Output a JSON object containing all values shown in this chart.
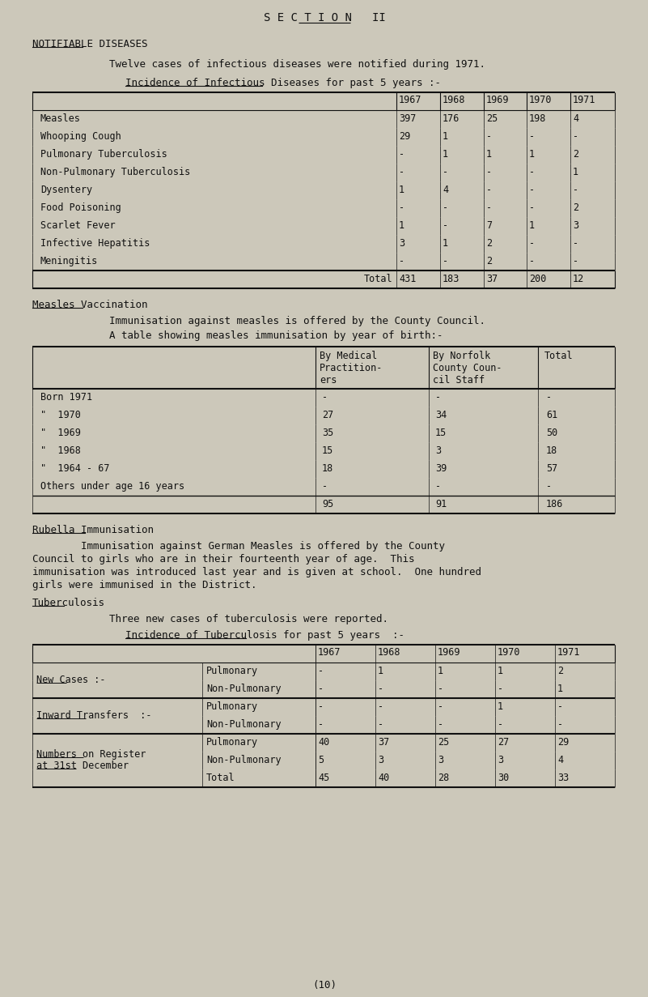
{
  "bg_color": "#ccc8ba",
  "text_color": "#111111",
  "page_title": "S E C T I O N   II",
  "section_heading": "NOTIFIABLE DISEASES",
  "intro_text": "Twelve cases of infectious diseases were notified during 1971.",
  "table1_title": "Incidence of Infectious Diseases for past 5 years :-",
  "table1_years": [
    "1967",
    "1968",
    "1969",
    "1970",
    "1971"
  ],
  "table1_rows": [
    [
      "Measles",
      "397",
      "176",
      "25",
      "198",
      "4"
    ],
    [
      "Whooping Cough",
      "29",
      "1",
      "-",
      "-",
      "-"
    ],
    [
      "Pulmonary Tuberculosis",
      "-",
      "1",
      "1",
      "1",
      "2"
    ],
    [
      "Non-Pulmonary Tuberculosis",
      "-",
      "-",
      "-",
      "-",
      "1"
    ],
    [
      "Dysentery",
      "1",
      "4",
      "-",
      "-",
      "-"
    ],
    [
      "Food Poisoning",
      "-",
      "-",
      "-",
      "-",
      "2"
    ],
    [
      "Scarlet Fever",
      "1",
      "-",
      "7",
      "1",
      "3"
    ],
    [
      "Infective Hepatitis",
      "3",
      "1",
      "2",
      "-",
      "-"
    ],
    [
      "Meningitis",
      "-",
      "-",
      "2",
      "-",
      "-"
    ]
  ],
  "table1_total": [
    "Total",
    "431",
    "183",
    "37",
    "200",
    "12"
  ],
  "measles_heading": "Measles Vaccination",
  "measles_text1": "Immunisation against measles is offered by the County Council.",
  "measles_text2": "A table showing measles immunisation by year of birth:-",
  "table2_col_headers": [
    [
      "By Medical",
      "Practition-",
      "ers"
    ],
    [
      "By Norfolk",
      "County Coun-",
      "cil Staff"
    ],
    [
      "Total"
    ]
  ],
  "table2_rows": [
    [
      "Born 1971",
      "-",
      "-",
      "-"
    ],
    [
      "\"  1970",
      "27",
      "34",
      "61"
    ],
    [
      "\"  1969",
      "35",
      "15",
      "50"
    ],
    [
      "\"  1968",
      "15",
      "3",
      "18"
    ],
    [
      "\"  1964 - 67",
      "18",
      "39",
      "57"
    ],
    [
      "Others under age 16 years",
      "-",
      "-",
      "-"
    ]
  ],
  "table2_total": [
    "95",
    "91",
    "186"
  ],
  "rubella_heading": "Rubella Immunisation",
  "rubella_lines": [
    "        Immunisation against German Measles is offered by the County",
    "Council to girls who are in their fourteenth year of age.  This",
    "immunisation was introduced last year and is given at school.  One hundred",
    "girls were immunised in the District."
  ],
  "tb_heading": "Tuberculosis",
  "tb_text": "Three new cases of tuberculosis were reported.",
  "table3_title": "Incidence of Tuberculosis for past 5 years  :-",
  "table3_years": [
    "1967",
    "1968",
    "1969",
    "1970",
    "1971"
  ],
  "table3_sections": [
    {
      "label": "New Cases :-",
      "underline": true,
      "rows": [
        [
          "Pulmonary",
          "-",
          "1",
          "1",
          "1",
          "2"
        ],
        [
          "Non-Pulmonary",
          "-",
          "-",
          "-",
          "-",
          "1"
        ]
      ]
    },
    {
      "label": "Inward Transfers  :-",
      "underline": true,
      "rows": [
        [
          "Pulmonary",
          "-",
          "-",
          "-",
          "1",
          "-"
        ],
        [
          "Non-Pulmonary",
          "-",
          "-",
          "-",
          "-",
          "-"
        ]
      ]
    },
    {
      "label": "Numbers on Register\nat 31st December",
      "underline": true,
      "rows": [
        [
          "Pulmonary",
          "40",
          "37",
          "25",
          "27",
          "29"
        ],
        [
          "Non-Pulmonary",
          "5",
          "3",
          "3",
          "3",
          "4"
        ],
        [
          "Total",
          "45",
          "40",
          "28",
          "30",
          "33"
        ]
      ]
    }
  ],
  "page_number": "(10)"
}
